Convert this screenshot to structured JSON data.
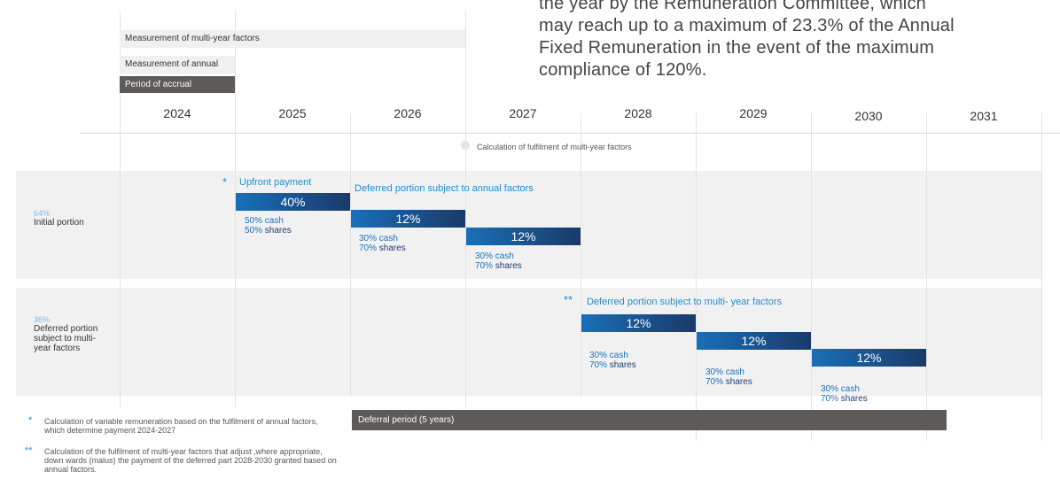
{
  "intro_lines": [
    "the year by the Remuneration Committee, which",
    "may reach up to a maximum of 23.3% of the Annual",
    "Fixed Remuneration in the event of the maximum",
    "compliance of 120%."
  ],
  "timeline": {
    "multi_year_label": "Measurement of multi-year factors",
    "annual_label": "Measurement of annual factors",
    "accrual_label": "Period of accrual",
    "years": [
      "2024",
      "2025",
      "2026",
      "2027",
      "2028",
      "2029",
      "2030",
      "2031"
    ],
    "calc_note": "Calculation of fulfilment of multi-year factors"
  },
  "rows": {
    "initial": {
      "pct": "64%",
      "label": "Initial portion"
    },
    "deferred": {
      "pct": "36%",
      "label": "Deferred portion subject to multi-year factors"
    }
  },
  "initial_payments": {
    "star": "*",
    "upfront_label": "Upfront payment",
    "deferred_label": "Deferred portion subject to annual factors",
    "upfront_value": "40%",
    "d1_value": "12%",
    "d2_value": "12%",
    "upfront_mix": {
      "cash_pct": "50%",
      "cash": "cash",
      "shares_pct": "50%",
      "shares": "shares"
    },
    "d1_mix": {
      "cash_pct": "30%",
      "cash": "cash",
      "shares_pct": "70%",
      "shares": "shares"
    },
    "d2_mix": {
      "cash_pct": "30%",
      "cash": "cash",
      "shares_pct": "70%",
      "shares": "shares"
    }
  },
  "deferred_payments": {
    "star": "**",
    "label": "Deferred portion subject to multi- year factors",
    "p1_value": "12%",
    "p2_value": "12%",
    "p3_value": "12%",
    "p1_mix": {
      "cash_pct": "30%",
      "cash": "cash",
      "shares_pct": "70%",
      "shares": "shares"
    },
    "p2_mix": {
      "cash_pct": "30%",
      "cash": "cash",
      "shares_pct": "70%",
      "shares": "shares"
    },
    "p3_mix": {
      "cash_pct": "30%",
      "cash": "cash",
      "shares_pct": "70%",
      "shares": "shares"
    }
  },
  "deferral_period_label": "Deferral period (5 years)",
  "footnotes": {
    "note1_star": "*",
    "note1": "Calculation of variable remuneration based on the fulfilment of annual factors, which determine payment 2024-2027",
    "note2_star": "**",
    "note2": "Calculation of the fulfilment of multi-year factors that adjust ,where appropriate, down wards (malus) the payment of the deferred part 2028-2030 granted based on annual factors."
  },
  "colors": {
    "blue": "#1a6fb8",
    "navy": "#1a3a68",
    "gray_dark": "#5e5a57",
    "light_band": "#f1f1f1"
  }
}
